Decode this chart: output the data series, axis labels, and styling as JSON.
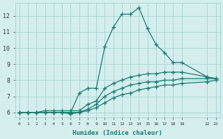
{
  "xlabel": "Humidex (Indice chaleur)",
  "bg_color": "#d4eeee",
  "grid_color": "#aed4d4",
  "line_color": "#1a7a6e",
  "xlim": [
    -0.5,
    23.5
  ],
  "ylim": [
    5.7,
    12.8
  ],
  "yticks": [
    6,
    7,
    8,
    9,
    10,
    11,
    12
  ],
  "xtick_positions": [
    0,
    1,
    2,
    3,
    4,
    5,
    6,
    7,
    8,
    9,
    10,
    11,
    12,
    13,
    14,
    15,
    16,
    17,
    18,
    19,
    22,
    23
  ],
  "xtick_labels": [
    "0",
    "1",
    "2",
    "3",
    "4",
    "5",
    "6",
    "7",
    "8",
    "9",
    "10",
    "11",
    "12",
    "13",
    "14",
    "15",
    "16",
    "17",
    "18",
    "19",
    "22",
    "23"
  ],
  "series": [
    {
      "x": [
        0,
        1,
        2,
        3,
        4,
        5,
        6,
        7,
        8,
        9,
        10,
        11,
        12,
        13,
        14,
        15,
        16,
        17,
        18,
        19,
        22,
        23
      ],
      "y": [
        6.0,
        6.0,
        6.0,
        6.0,
        6.0,
        6.0,
        6.0,
        7.2,
        7.5,
        7.5,
        10.1,
        11.3,
        12.1,
        12.1,
        12.5,
        11.2,
        10.2,
        9.7,
        9.1,
        9.1,
        8.2,
        8.1
      ]
    },
    {
      "x": [
        0,
        1,
        2,
        3,
        4,
        5,
        6,
        7,
        8,
        9,
        10,
        11,
        12,
        13,
        14,
        15,
        16,
        17,
        18,
        19,
        22,
        23
      ],
      "y": [
        6.0,
        6.0,
        6.0,
        6.1,
        6.1,
        6.1,
        6.1,
        6.1,
        6.5,
        6.7,
        7.5,
        7.8,
        8.0,
        8.2,
        8.3,
        8.4,
        8.4,
        8.5,
        8.5,
        8.5,
        8.2,
        8.1
      ]
    },
    {
      "x": [
        0,
        1,
        2,
        3,
        4,
        5,
        6,
        7,
        8,
        9,
        10,
        11,
        12,
        13,
        14,
        15,
        16,
        17,
        18,
        19,
        22,
        23
      ],
      "y": [
        6.0,
        6.0,
        6.0,
        6.0,
        6.0,
        6.0,
        6.0,
        6.0,
        6.2,
        6.5,
        7.0,
        7.3,
        7.5,
        7.7,
        7.8,
        7.9,
        7.9,
        8.0,
        8.0,
        8.1,
        8.1,
        8.1
      ]
    },
    {
      "x": [
        0,
        1,
        2,
        3,
        4,
        5,
        6,
        7,
        8,
        9,
        10,
        11,
        12,
        13,
        14,
        15,
        16,
        17,
        18,
        19,
        22,
        23
      ],
      "y": [
        6.0,
        6.0,
        6.0,
        6.0,
        6.0,
        6.0,
        5.9,
        6.0,
        6.1,
        6.3,
        6.6,
        6.9,
        7.1,
        7.2,
        7.4,
        7.5,
        7.6,
        7.7,
        7.7,
        7.8,
        7.9,
        8.0
      ]
    }
  ]
}
